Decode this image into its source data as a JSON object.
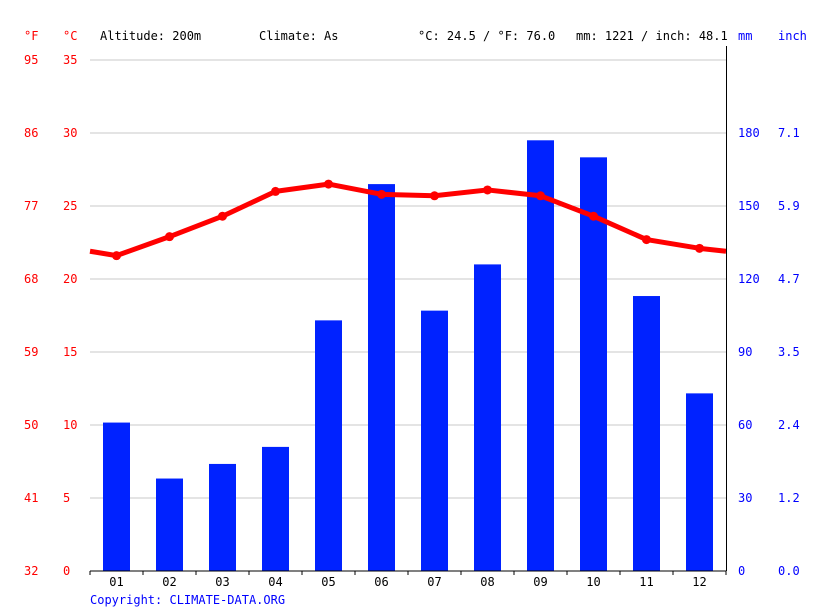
{
  "header": {
    "unit_f": "°F",
    "unit_c": "°C",
    "altitude": "Altitude: 200m",
    "climate": "Climate: As",
    "temp_avg": "°C: 24.5 / °F: 76.0",
    "precip_total": "mm: 1221 / inch: 48.1",
    "unit_mm": "mm",
    "unit_inch": "inch"
  },
  "footer": {
    "copyright": "Copyright: CLIMATE-DATA.ORG"
  },
  "colors": {
    "temperature": "#ff0000",
    "precipitation": "#0022ff",
    "grid": "#c8c8c8"
  },
  "chart_data": {
    "type": "bar+line",
    "categories": [
      "01",
      "02",
      "03",
      "04",
      "05",
      "06",
      "07",
      "08",
      "09",
      "10",
      "11",
      "12"
    ],
    "series": [
      {
        "type": "bar",
        "axis": "right",
        "values": [
          61,
          38,
          44,
          51,
          103,
          159,
          107,
          126,
          177,
          170,
          113,
          73
        ]
      },
      {
        "type": "line",
        "axis": "left",
        "values": [
          21.6,
          22.9,
          24.3,
          26.0,
          26.5,
          25.8,
          25.7,
          26.1,
          25.7,
          24.3,
          22.7,
          22.1
        ],
        "edge_start": 21.9,
        "edge_end": 21.9
      }
    ],
    "axes": {
      "left_c": {
        "ticks": [
          "0",
          "5",
          "10",
          "15",
          "20",
          "25",
          "30",
          "35"
        ],
        "range": [
          0,
          35
        ]
      },
      "left_f": {
        "ticks": [
          "32",
          "41",
          "50",
          "59",
          "68",
          "77",
          "86",
          "95"
        ]
      },
      "right_mm": {
        "ticks": [
          "0",
          "30",
          "60",
          "90",
          "120",
          "150",
          "180"
        ],
        "range": [
          0,
          210
        ]
      },
      "right_inch": {
        "ticks": [
          "0.0",
          "1.2",
          "2.4",
          "3.5",
          "4.7",
          "5.9",
          "7.1"
        ]
      }
    },
    "grid": true
  }
}
